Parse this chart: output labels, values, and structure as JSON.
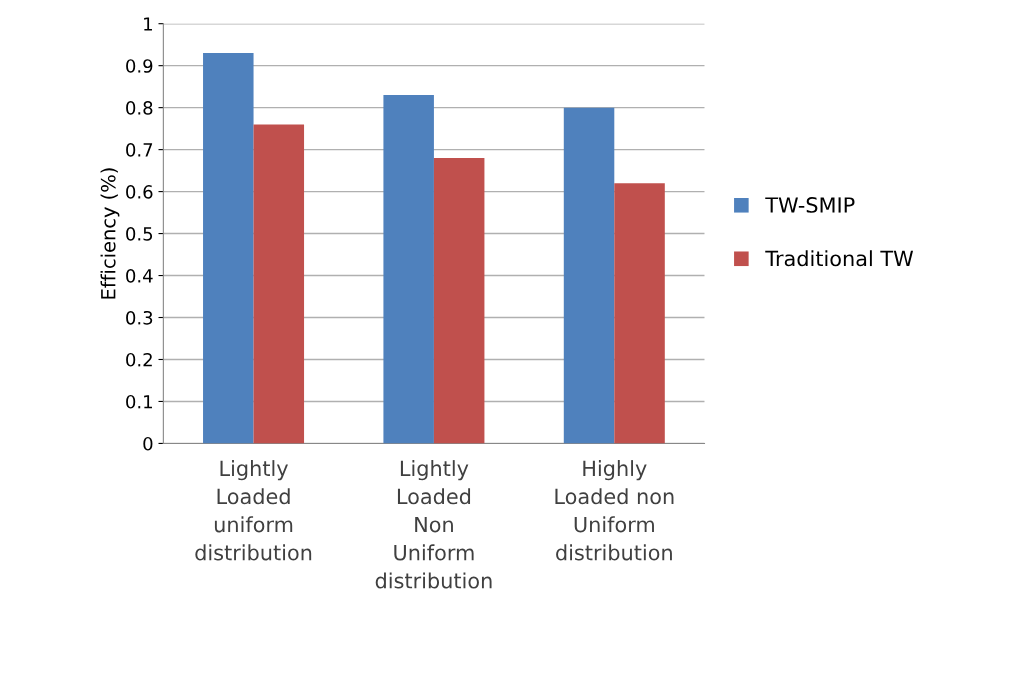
{
  "chart_data": {
    "type": "bar",
    "ylabel": "Efficiency (%)",
    "categories": [
      "Lightly\nLoaded\nuniform\ndistribution",
      "Lightly\nLoaded\nNon\nUniform\ndistribution",
      "Highly\nLoaded non\nUniform\ndistribution"
    ],
    "series": [
      {
        "name": "TW-SMIP",
        "color": "#4f81bd",
        "values": [
          0.93,
          0.83,
          0.8
        ]
      },
      {
        "name": "Traditional TW",
        "color": "#c0504d",
        "values": [
          0.76,
          0.68,
          0.62
        ]
      }
    ],
    "ylim": [
      0,
      1
    ],
    "yticks": [
      0,
      0.1,
      0.2,
      0.3,
      0.4,
      0.5,
      0.6,
      0.7,
      0.8,
      0.9,
      1
    ],
    "grid": "y",
    "legend": "right"
  }
}
